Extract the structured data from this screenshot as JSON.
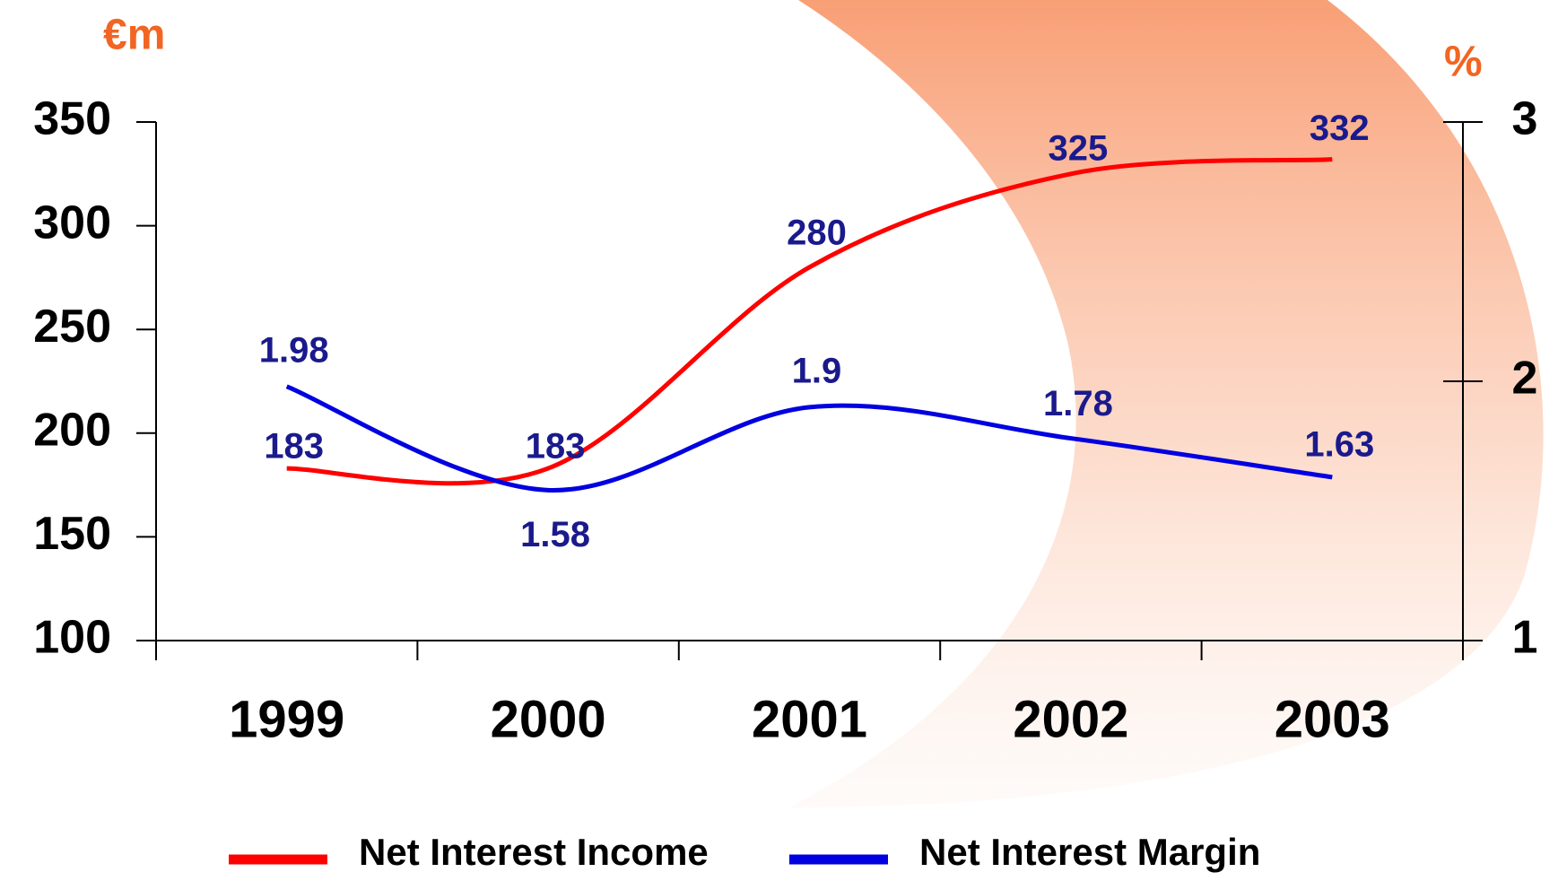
{
  "chart_data": {
    "type": "line",
    "y_unit": "€m",
    "y2_unit": "%",
    "categories": [
      "1999",
      "2000",
      "2001",
      "2002",
      "2003"
    ],
    "series": [
      {
        "name": "Net Interest Income",
        "color": "#ff0000",
        "values": [
          183,
          183,
          280,
          325,
          332
        ]
      },
      {
        "name": "Net Interest Margin",
        "color": "#0000e0",
        "axis": "y2",
        "values": [
          1.98,
          1.58,
          1.9,
          1.78,
          1.63
        ]
      }
    ],
    "ylim": [
      100,
      350
    ],
    "yticks": [
      100,
      150,
      200,
      250,
      300,
      350
    ],
    "y2lim": [
      1,
      3
    ],
    "y2ticks": [
      1,
      2,
      3
    ]
  }
}
